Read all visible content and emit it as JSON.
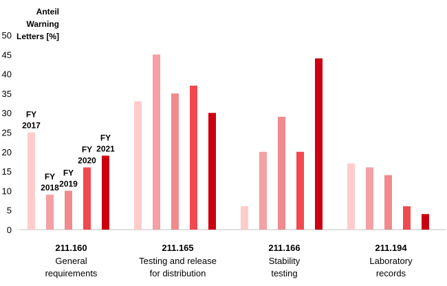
{
  "chart_data": {
    "type": "bar",
    "ylabel_lines": [
      "Anteil Warning",
      "Letters [%]"
    ],
    "ylim": [
      0,
      50
    ],
    "yticks": [
      0,
      5,
      10,
      15,
      20,
      25,
      30,
      35,
      40,
      45,
      50
    ],
    "grid": false,
    "categories": [
      {
        "code": "211.160",
        "desc": [
          "General",
          "requirements"
        ]
      },
      {
        "code": "211.165",
        "desc": [
          "Testing and release",
          "for distribution"
        ]
      },
      {
        "code": "211.166",
        "desc": [
          "Stability",
          "testing"
        ]
      },
      {
        "code": "211.194",
        "desc": [
          "Laboratory",
          "records"
        ]
      }
    ],
    "series": [
      {
        "name": "FY 2017",
        "label_lines": [
          "FY",
          "2017"
        ],
        "color": "#ffcccc",
        "values": [
          25,
          33,
          6,
          17
        ]
      },
      {
        "name": "FY 2018",
        "label_lines": [
          "FY",
          "2018"
        ],
        "color": "#f4a0a4",
        "values": [
          9,
          45,
          20,
          16
        ]
      },
      {
        "name": "FY 2019",
        "label_lines": [
          "FY",
          "2019"
        ],
        "color": "#f08a8e",
        "values": [
          10,
          35,
          29,
          14
        ]
      },
      {
        "name": "FY 2020",
        "label_lines": [
          "FY",
          "2020"
        ],
        "color": "#f04a50",
        "values": [
          16,
          37,
          20,
          6
        ]
      },
      {
        "name": "FY 2021",
        "label_lines": [
          "FY",
          "2021"
        ],
        "color": "#cc0010",
        "values": [
          19,
          30,
          44,
          4
        ]
      }
    ]
  }
}
